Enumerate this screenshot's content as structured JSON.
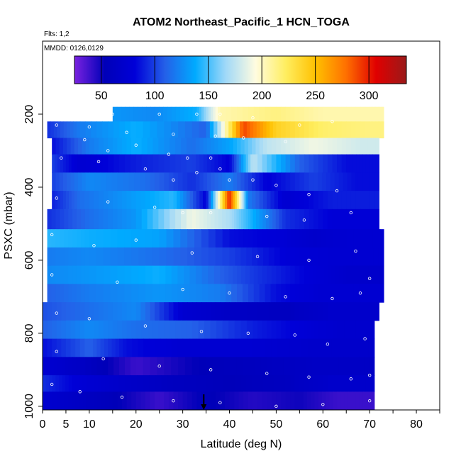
{
  "chart_data": {
    "type": "heatmap",
    "title": "ATOM2 Northeast_Pacific_1 HCN_TOGA",
    "annotations": [
      "Flts: 1,2",
      "MMDD: 0126,0129"
    ],
    "xlabel": "Latitude (deg N)",
    "ylabel": "PSXC (mbar)",
    "xlim": [
      0,
      85
    ],
    "ylim": [
      1010,
      0
    ],
    "x_ticks": [
      0,
      5,
      10,
      20,
      30,
      40,
      50,
      60,
      70,
      80
    ],
    "y_ticks": [
      200,
      400,
      600,
      800,
      1000
    ],
    "colorbar": {
      "range": [
        25,
        335
      ],
      "ticks": [
        50,
        100,
        150,
        200,
        250,
        300
      ],
      "colors": [
        "#7a22e0",
        "#0000b8",
        "#0000d8",
        "#2460e8",
        "#00aaff",
        "#9fd8f8",
        "#fffce0",
        "#ffee60",
        "#ffc000",
        "#ff7000",
        "#e00000",
        "#9a1a1a"
      ]
    },
    "layers": [
      {
        "p_top": 180,
        "p_bot": 220,
        "lat_min": 15,
        "lat_max": 73,
        "segments": [
          [
            15,
            130
          ],
          [
            24,
            125
          ],
          [
            33,
            140
          ],
          [
            38,
            205
          ],
          [
            50,
            215
          ],
          [
            60,
            205
          ],
          [
            70,
            205
          ]
        ]
      },
      {
        "p_top": 220,
        "p_bot": 265,
        "lat_min": 1,
        "lat_max": 73,
        "segments": [
          [
            1,
            95
          ],
          [
            8,
            120
          ],
          [
            20,
            140
          ],
          [
            35,
            110
          ],
          [
            43,
            290
          ],
          [
            50,
            240
          ],
          [
            60,
            220
          ],
          [
            70,
            215
          ]
        ]
      },
      {
        "p_top": 265,
        "p_bot": 310,
        "lat_min": 2,
        "lat_max": 72,
        "segments": [
          [
            2,
            85
          ],
          [
            10,
            120
          ],
          [
            20,
            140
          ],
          [
            32,
            115
          ],
          [
            40,
            135
          ],
          [
            48,
            175
          ],
          [
            58,
            190
          ],
          [
            68,
            180
          ]
        ]
      },
      {
        "p_top": 310,
        "p_bot": 360,
        "lat_min": 2,
        "lat_max": 72,
        "segments": [
          [
            2,
            100
          ],
          [
            8,
            75
          ],
          [
            20,
            90
          ],
          [
            32,
            100
          ],
          [
            40,
            80
          ],
          [
            45,
            175
          ],
          [
            55,
            110
          ],
          [
            65,
            85
          ]
        ]
      },
      {
        "p_top": 360,
        "p_bot": 410,
        "lat_min": 2,
        "lat_max": 72,
        "segments": [
          [
            2,
            100
          ],
          [
            10,
            125
          ],
          [
            22,
            115
          ],
          [
            32,
            95
          ],
          [
            40,
            120
          ],
          [
            48,
            80
          ],
          [
            58,
            100
          ],
          [
            67,
            85
          ]
        ]
      },
      {
        "p_top": 410,
        "p_bot": 460,
        "lat_min": 2,
        "lat_max": 72,
        "segments": [
          [
            2,
            90
          ],
          [
            8,
            115
          ],
          [
            18,
            130
          ],
          [
            28,
            145
          ],
          [
            35,
            80
          ],
          [
            40,
            300
          ],
          [
            44,
            120
          ],
          [
            52,
            75
          ],
          [
            62,
            90
          ]
        ]
      },
      {
        "p_top": 460,
        "p_bot": 515,
        "lat_min": 1,
        "lat_max": 72,
        "segments": [
          [
            1,
            95
          ],
          [
            10,
            115
          ],
          [
            20,
            130
          ],
          [
            32,
            190
          ],
          [
            40,
            170
          ],
          [
            45,
            140
          ],
          [
            52,
            95
          ],
          [
            62,
            80
          ]
        ]
      },
      {
        "p_top": 515,
        "p_bot": 565,
        "lat_min": 1,
        "lat_max": 73,
        "segments": [
          [
            1,
            145
          ],
          [
            10,
            140
          ],
          [
            25,
            135
          ],
          [
            40,
            85
          ],
          [
            50,
            80
          ],
          [
            58,
            70
          ],
          [
            65,
            75
          ]
        ]
      },
      {
        "p_top": 565,
        "p_bot": 615,
        "lat_min": 1,
        "lat_max": 73,
        "segments": [
          [
            1,
            120
          ],
          [
            10,
            125
          ],
          [
            25,
            115
          ],
          [
            40,
            100
          ],
          [
            52,
            80
          ],
          [
            62,
            75
          ]
        ]
      },
      {
        "p_top": 615,
        "p_bot": 665,
        "lat_min": 1,
        "lat_max": 73,
        "segments": [
          [
            1,
            125
          ],
          [
            10,
            130
          ],
          [
            25,
            140
          ],
          [
            38,
            110
          ],
          [
            47,
            95
          ],
          [
            57,
            80
          ],
          [
            65,
            70
          ]
        ]
      },
      {
        "p_top": 665,
        "p_bot": 715,
        "lat_min": 1,
        "lat_max": 73,
        "segments": [
          [
            1,
            110
          ],
          [
            10,
            120
          ],
          [
            25,
            130
          ],
          [
            38,
            120
          ],
          [
            50,
            85
          ],
          [
            60,
            75
          ]
        ]
      },
      {
        "p_top": 715,
        "p_bot": 765,
        "lat_min": 0,
        "lat_max": 72,
        "segments": [
          [
            0,
            105
          ],
          [
            10,
            115
          ],
          [
            20,
            125
          ],
          [
            30,
            75
          ],
          [
            40,
            65
          ],
          [
            52,
            60
          ],
          [
            62,
            70
          ]
        ]
      },
      {
        "p_top": 765,
        "p_bot": 815,
        "lat_min": 0,
        "lat_max": 71,
        "segments": [
          [
            0,
            110
          ],
          [
            10,
            125
          ],
          [
            20,
            115
          ],
          [
            32,
            110
          ],
          [
            45,
            90
          ],
          [
            55,
            80
          ],
          [
            63,
            72
          ]
        ]
      },
      {
        "p_top": 815,
        "p_bot": 865,
        "lat_min": 0,
        "lat_max": 71,
        "segments": [
          [
            0,
            85
          ],
          [
            10,
            110
          ],
          [
            18,
            85
          ],
          [
            30,
            75
          ],
          [
            45,
            75
          ],
          [
            58,
            70
          ]
        ]
      },
      {
        "p_top": 865,
        "p_bot": 915,
        "lat_min": 0,
        "lat_max": 71,
        "segments": [
          [
            0,
            75
          ],
          [
            8,
            65
          ],
          [
            20,
            40
          ],
          [
            35,
            55
          ],
          [
            48,
            60
          ],
          [
            60,
            65
          ]
        ]
      },
      {
        "p_top": 915,
        "p_bot": 960,
        "lat_min": 0,
        "lat_max": 71,
        "segments": [
          [
            0,
            95
          ],
          [
            7,
            80
          ],
          [
            15,
            70
          ],
          [
            28,
            60
          ],
          [
            40,
            55
          ],
          [
            52,
            60
          ],
          [
            62,
            70
          ]
        ]
      },
      {
        "p_top": 960,
        "p_bot": 1010,
        "lat_min": -1,
        "lat_max": 71,
        "segments": [
          [
            -1,
            75
          ],
          [
            7,
            65
          ],
          [
            15,
            55
          ],
          [
            25,
            40
          ],
          [
            35,
            55
          ],
          [
            45,
            45
          ],
          [
            55,
            50
          ],
          [
            63,
            40
          ]
        ]
      }
    ],
    "flight_path_points": [
      [
        15,
        200
      ],
      [
        25,
        200
      ],
      [
        33,
        200
      ],
      [
        38,
        200
      ],
      [
        45,
        210
      ],
      [
        55,
        230
      ],
      [
        62,
        220
      ],
      [
        3,
        230
      ],
      [
        10,
        235
      ],
      [
        18,
        250
      ],
      [
        28,
        255
      ],
      [
        37,
        260
      ],
      [
        43,
        265
      ],
      [
        52,
        275
      ],
      [
        9,
        270
      ],
      [
        14,
        300
      ],
      [
        20,
        285
      ],
      [
        27,
        310
      ],
      [
        31,
        320
      ],
      [
        33,
        360
      ],
      [
        36,
        320
      ],
      [
        38,
        350
      ],
      [
        40,
        380
      ],
      [
        4,
        320
      ],
      [
        12,
        330
      ],
      [
        22,
        350
      ],
      [
        28,
        380
      ],
      [
        45,
        380
      ],
      [
        50,
        395
      ],
      [
        57,
        420
      ],
      [
        63,
        410
      ],
      [
        3,
        430
      ],
      [
        14,
        440
      ],
      [
        24,
        455
      ],
      [
        30,
        470
      ],
      [
        36,
        470
      ],
      [
        48,
        480
      ],
      [
        56,
        490
      ],
      [
        66,
        470
      ],
      [
        2,
        530
      ],
      [
        11,
        560
      ],
      [
        20,
        545
      ],
      [
        32,
        580
      ],
      [
        46,
        590
      ],
      [
        57,
        600
      ],
      [
        67,
        575
      ],
      [
        70,
        650
      ],
      [
        2,
        640
      ],
      [
        16,
        660
      ],
      [
        30,
        680
      ],
      [
        40,
        690
      ],
      [
        52,
        700
      ],
      [
        62,
        705
      ],
      [
        68,
        690
      ],
      [
        3,
        745
      ],
      [
        10,
        760
      ],
      [
        22,
        780
      ],
      [
        34,
        795
      ],
      [
        44,
        800
      ],
      [
        54,
        805
      ],
      [
        61,
        830
      ],
      [
        69,
        815
      ],
      [
        3,
        850
      ],
      [
        13,
        870
      ],
      [
        25,
        890
      ],
      [
        36,
        900
      ],
      [
        48,
        910
      ],
      [
        57,
        920
      ],
      [
        66,
        925
      ],
      [
        70,
        915
      ],
      [
        2,
        940
      ],
      [
        8,
        960
      ],
      [
        17,
        975
      ],
      [
        28,
        985
      ],
      [
        38,
        990
      ],
      [
        50,
        1000
      ],
      [
        60,
        995
      ],
      [
        70,
        985
      ]
    ],
    "marker_latitude": 34.5
  }
}
